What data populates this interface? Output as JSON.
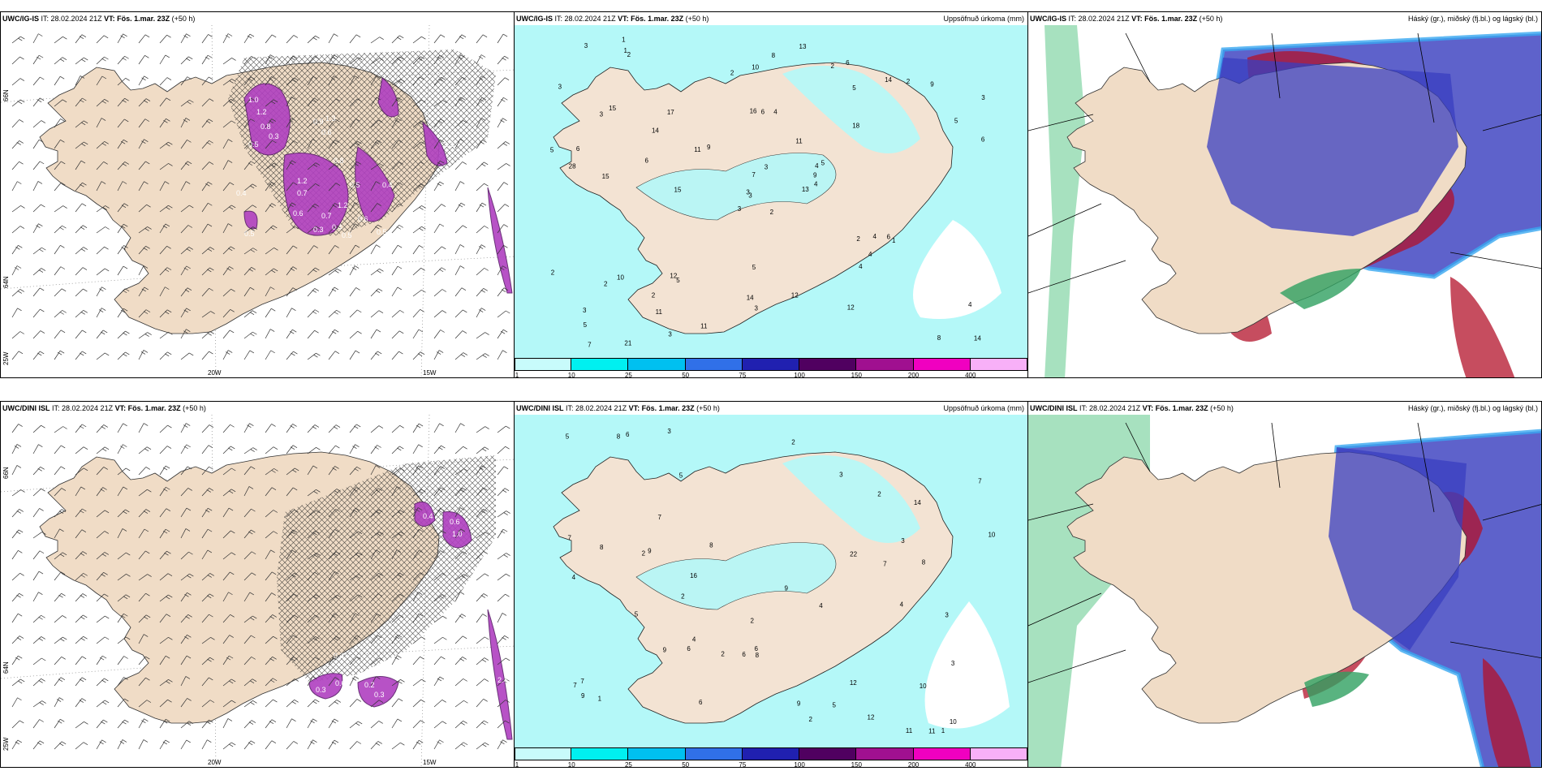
{
  "rows": [
    {
      "model": "UWC/IG-IS",
      "it": "IT: 28.02.2024 21Z",
      "vt_label": "VT:",
      "vt": "Fös. 1.mar. 23Z",
      "lead": "(+50 h)"
    },
    {
      "model": "UWC/DINI ISL",
      "it": "IT: 28.02.2024 21Z",
      "vt_label": "VT:",
      "vt": "Fös. 1.mar. 23Z",
      "lead": "(+50 h)"
    }
  ],
  "precip_title": "Uppsöfnuð úrkoma (mm)",
  "cloud_title": "Háský (gr.), miðský (fj.bl.) og lágský (bl.)",
  "colorbar": {
    "ticks": [
      "1",
      "10",
      "25",
      "50",
      "75",
      "100",
      "150",
      "200",
      "400"
    ],
    "colors": [
      "#c8fbfb",
      "#00f0f0",
      "#00c0f0",
      "#3070e8",
      "#2020b0",
      "#500060",
      "#a01090",
      "#f000c0",
      "#f8b0f8"
    ]
  },
  "axis_labels": {
    "lat_66": "66N",
    "lat_64": "64N",
    "lon_25w": "25W",
    "lon_20w": "20W",
    "lon_15w": "15W"
  },
  "top_precip_numbers": [
    "2",
    "3",
    "3",
    "3",
    "4",
    "5",
    "6",
    "4",
    "5",
    "13",
    "2",
    "14",
    "15",
    "3",
    "3",
    "18",
    "21",
    "16",
    "11",
    "10",
    "9",
    "5",
    "11",
    "6",
    "5",
    "1",
    "15",
    "10",
    "28",
    "2",
    "6",
    "3",
    "14",
    "7",
    "17",
    "14",
    "12",
    "8",
    "4",
    "6",
    "13",
    "11",
    "6",
    "4",
    "3",
    "5",
    "9",
    "7",
    "3",
    "4",
    "2",
    "5",
    "3",
    "4",
    "12",
    "2",
    "1",
    "3",
    "12",
    "9",
    "8",
    "15",
    "6",
    "14",
    "2",
    "1",
    "2",
    "2",
    "3",
    "2",
    "5",
    "11",
    "4"
  ],
  "bot_precip_numbers": [
    "2",
    "2",
    "8",
    "4",
    "1",
    "5",
    "6",
    "2",
    "6",
    "7",
    "8",
    "2",
    "5",
    "11",
    "16",
    "12",
    "9",
    "10",
    "7",
    "8",
    "11",
    "9",
    "5",
    "9",
    "10",
    "22",
    "9",
    "7",
    "14",
    "7",
    "4",
    "2",
    "1",
    "3",
    "2",
    "7",
    "8",
    "6",
    "5",
    "6",
    "4",
    "10",
    "3",
    "12",
    "8",
    "9",
    "6",
    "7",
    "3",
    "3",
    "2",
    "3",
    "4"
  ],
  "top_vis_labels": [
    "1.0",
    "1.2",
    "0.8",
    "0.5",
    "0.3",
    "0.7",
    "0.6",
    "0.9",
    "1.3",
    "0.6",
    "0.8",
    "0.5",
    "0.4",
    "1.2",
    "0.7",
    "0.4",
    "0.6",
    "0.5",
    "0.5",
    "1.1",
    "0.4",
    "0.3",
    "0.5",
    "1.2"
  ],
  "bot_vis_labels": [
    "0.3",
    "0.2",
    "0.3",
    "0.5",
    "0.6",
    "0.4",
    "0.6",
    "1.0",
    "2.4",
    "0.2"
  ]
}
